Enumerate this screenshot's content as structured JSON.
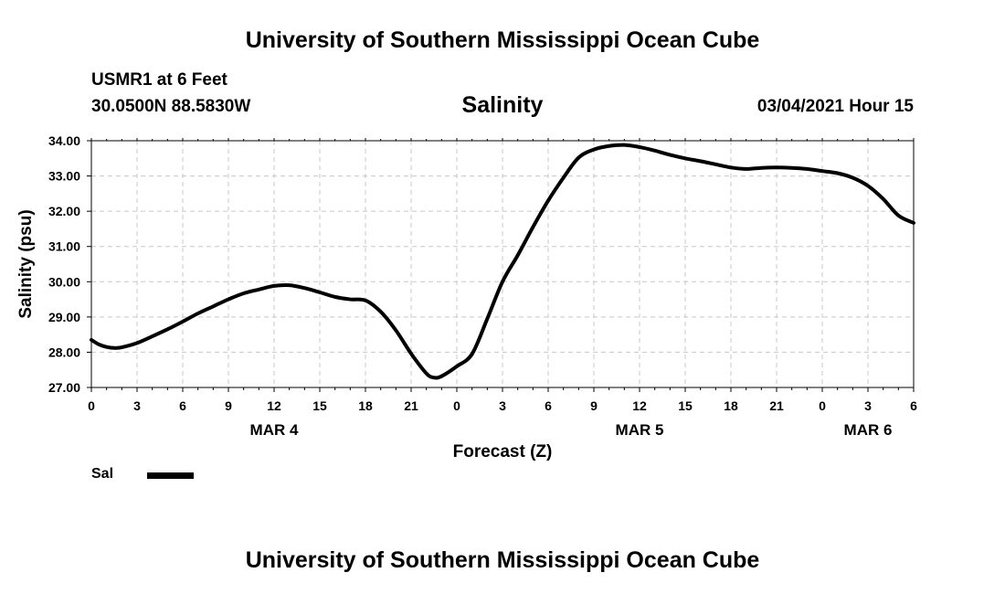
{
  "header": {
    "title_top": "University of Southern Mississippi Ocean Cube",
    "station": "USMR1 at 6 Feet",
    "coords": "30.0500N 88.5830W",
    "parameter": "Salinity",
    "datetime": "03/04/2021 Hour 15",
    "title_bottom": "University of Southern Mississippi Ocean Cube"
  },
  "legend": {
    "label": "Sal"
  },
  "chart_data": {
    "type": "line",
    "title": "Salinity",
    "xlabel": "Forecast (Z)",
    "ylabel": "Salinity (psu)",
    "xlim": [
      0,
      54
    ],
    "ylim": [
      27.0,
      34.0
    ],
    "grid": true,
    "legend_position": "bottom-left",
    "x_ticks": [
      0,
      3,
      6,
      9,
      12,
      15,
      18,
      21,
      24,
      27,
      30,
      33,
      36,
      39,
      42,
      45,
      48,
      51,
      54
    ],
    "x_tick_labels": [
      "0",
      "3",
      "6",
      "9",
      "12",
      "15",
      "18",
      "21",
      "0",
      "3",
      "6",
      "9",
      "12",
      "15",
      "18",
      "21",
      "0",
      "3",
      "6"
    ],
    "y_ticks": [
      27,
      28,
      29,
      30,
      31,
      32,
      33,
      34
    ],
    "y_tick_labels": [
      "27.00",
      "28.00",
      "29.00",
      "30.00",
      "31.00",
      "32.00",
      "33.00",
      "34.00"
    ],
    "day_labels": [
      {
        "x": 12,
        "label": "MAR 4"
      },
      {
        "x": 36,
        "label": "MAR 5"
      },
      {
        "x": 51,
        "label": "MAR 6"
      }
    ],
    "series": [
      {
        "name": "Sal",
        "color": "#000000",
        "x": [
          0,
          0.5,
          1,
          1.5,
          2,
          3,
          4,
          5,
          6,
          7,
          8,
          9,
          10,
          11,
          12,
          13,
          14,
          15,
          16,
          17,
          18,
          19,
          20,
          21,
          22,
          22.5,
          23,
          24,
          25,
          26,
          27,
          28,
          29,
          30,
          31,
          32,
          33,
          34,
          35,
          36,
          37,
          38,
          39,
          40,
          41,
          42,
          43,
          44,
          45,
          46,
          47,
          48,
          49,
          50,
          51,
          52,
          53,
          54
        ],
        "values": [
          28.35,
          28.22,
          28.15,
          28.12,
          28.14,
          28.26,
          28.45,
          28.65,
          28.87,
          29.1,
          29.3,
          29.5,
          29.67,
          29.78,
          29.88,
          29.9,
          29.82,
          29.7,
          29.57,
          29.5,
          29.47,
          29.15,
          28.62,
          27.96,
          27.4,
          27.28,
          27.32,
          27.6,
          27.95,
          28.95,
          30.0,
          30.75,
          31.55,
          32.3,
          32.95,
          33.52,
          33.75,
          33.85,
          33.88,
          33.82,
          33.72,
          33.6,
          33.5,
          33.42,
          33.33,
          33.24,
          33.2,
          33.23,
          33.24,
          33.23,
          33.2,
          33.14,
          33.08,
          32.95,
          32.72,
          32.35,
          31.88,
          31.67
        ]
      }
    ]
  }
}
